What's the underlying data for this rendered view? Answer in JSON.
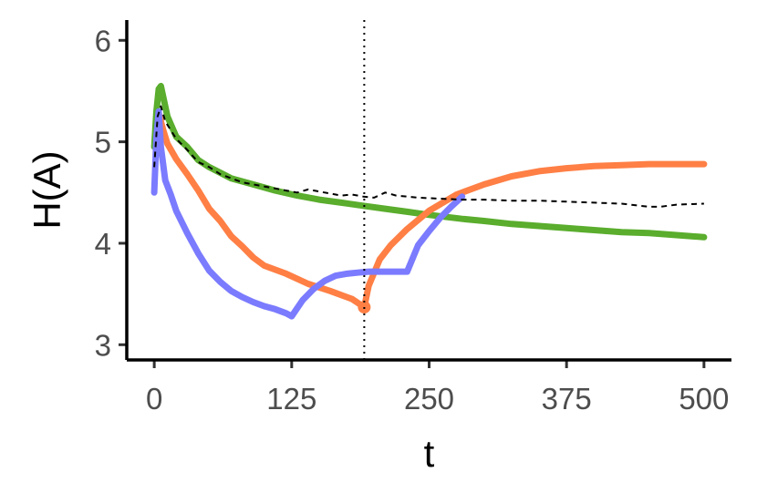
{
  "chart_data": {
    "type": "line",
    "xlabel": "t",
    "ylabel": "H(A)",
    "xlim": [
      -25,
      525
    ],
    "ylim": [
      2.85,
      6.2
    ],
    "x_ticks": [
      0,
      125,
      250,
      375,
      500
    ],
    "x_tick_labels": [
      "0",
      "125",
      "250",
      "375",
      "500"
    ],
    "y_ticks": [
      3,
      4,
      5,
      6
    ],
    "y_tick_labels": [
      "3",
      "4",
      "5",
      "6"
    ],
    "grid": false,
    "legend": "none",
    "vline_x": 191,
    "series": [
      {
        "color": "#5aad2d",
        "style": "solid",
        "x": [
          0,
          2,
          4,
          6,
          8,
          12,
          20,
          30,
          40,
          50,
          70,
          90,
          110,
          130,
          150,
          170,
          190,
          210,
          230,
          250,
          280,
          300,
          325,
          350,
          375,
          400,
          425,
          450,
          475,
          500
        ],
        "y": [
          4.95,
          5.3,
          5.52,
          5.55,
          5.45,
          5.25,
          5.05,
          4.95,
          4.82,
          4.75,
          4.64,
          4.58,
          4.52,
          4.47,
          4.43,
          4.4,
          4.37,
          4.34,
          4.31,
          4.28,
          4.24,
          4.22,
          4.19,
          4.17,
          4.15,
          4.13,
          4.11,
          4.1,
          4.08,
          4.06
        ]
      },
      {
        "color": "#ff7f45",
        "style": "solid",
        "x": [
          4,
          8,
          12,
          20,
          30,
          40,
          50,
          60,
          70,
          80,
          90,
          100,
          120,
          140,
          160,
          180,
          191,
          195,
          205,
          215,
          230,
          250,
          275,
          300,
          325,
          350,
          375,
          400,
          425,
          450,
          475,
          500
        ],
        "y": [
          5.28,
          5.12,
          4.98,
          4.83,
          4.68,
          4.52,
          4.34,
          4.22,
          4.07,
          3.97,
          3.86,
          3.78,
          3.7,
          3.6,
          3.53,
          3.45,
          3.37,
          3.58,
          3.84,
          3.98,
          4.14,
          4.32,
          4.48,
          4.58,
          4.66,
          4.71,
          4.74,
          4.76,
          4.77,
          4.78,
          4.78,
          4.78
        ]
      },
      {
        "color": "#7b7bff",
        "style": "solid",
        "x": [
          0,
          2,
          4,
          6,
          10,
          15,
          20,
          30,
          40,
          50,
          60,
          70,
          80,
          90,
          100,
          110,
          120,
          125,
          135,
          145,
          155,
          165,
          175,
          185,
          195,
          205,
          215,
          225,
          230,
          240,
          250,
          260,
          270,
          280
        ],
        "y": [
          4.5,
          5.05,
          5.3,
          4.95,
          4.62,
          4.48,
          4.32,
          4.1,
          3.9,
          3.73,
          3.62,
          3.53,
          3.47,
          3.42,
          3.38,
          3.35,
          3.31,
          3.28,
          3.44,
          3.55,
          3.63,
          3.68,
          3.7,
          3.71,
          3.72,
          3.72,
          3.72,
          3.72,
          3.72,
          3.98,
          4.12,
          4.25,
          4.36,
          4.46
        ]
      },
      {
        "color": "#000000",
        "style": "dashed",
        "x": [
          0,
          3,
          6,
          10,
          20,
          30,
          40,
          50,
          60,
          70,
          80,
          90,
          100,
          110,
          120,
          130,
          140,
          150,
          160,
          170,
          180,
          190,
          200,
          210,
          220,
          240,
          260,
          280,
          300,
          325,
          350,
          375,
          400,
          425,
          450,
          460,
          475,
          500
        ],
        "y": [
          4.75,
          5.25,
          5.35,
          5.2,
          5.03,
          4.92,
          4.8,
          4.75,
          4.68,
          4.64,
          4.6,
          4.58,
          4.56,
          4.54,
          4.52,
          4.5,
          4.53,
          4.51,
          4.49,
          4.47,
          4.48,
          4.46,
          4.45,
          4.5,
          4.47,
          4.45,
          4.44,
          4.43,
          4.43,
          4.42,
          4.42,
          4.41,
          4.4,
          4.39,
          4.36,
          4.36,
          4.38,
          4.39
        ]
      }
    ]
  }
}
